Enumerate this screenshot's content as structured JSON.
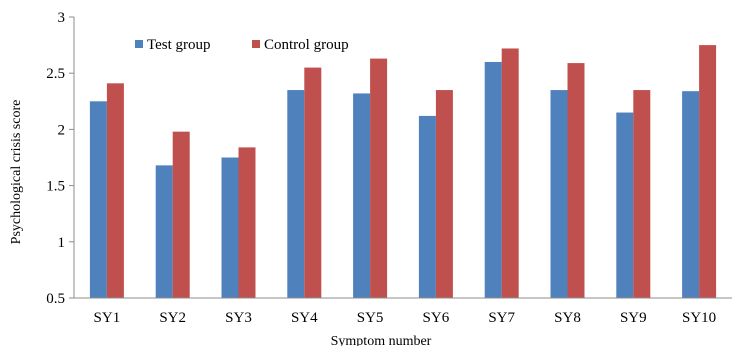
{
  "chart_data": {
    "type": "bar",
    "title": "",
    "xlabel": "Symptom number",
    "ylabel": "Psychological crisis score",
    "categories": [
      "SY1",
      "SY2",
      "SY3",
      "SY4",
      "SY5",
      "SY6",
      "SY7",
      "SY8",
      "SY9",
      "SY10"
    ],
    "series": [
      {
        "name": "Test group",
        "color": "#4f81bd",
        "values": [
          2.25,
          1.68,
          1.75,
          2.35,
          2.32,
          2.12,
          2.6,
          2.35,
          2.15,
          2.34
        ]
      },
      {
        "name": "Control group",
        "color": "#c0504d",
        "values": [
          2.41,
          1.98,
          1.84,
          2.55,
          2.63,
          2.35,
          2.72,
          2.59,
          2.35,
          2.75
        ]
      }
    ],
    "ylim": [
      0.5,
      3
    ],
    "yticks": [
      "0.5",
      "1",
      "1.5",
      "2",
      "2.5",
      "3"
    ],
    "grid": false,
    "legend_position": "top-left"
  }
}
